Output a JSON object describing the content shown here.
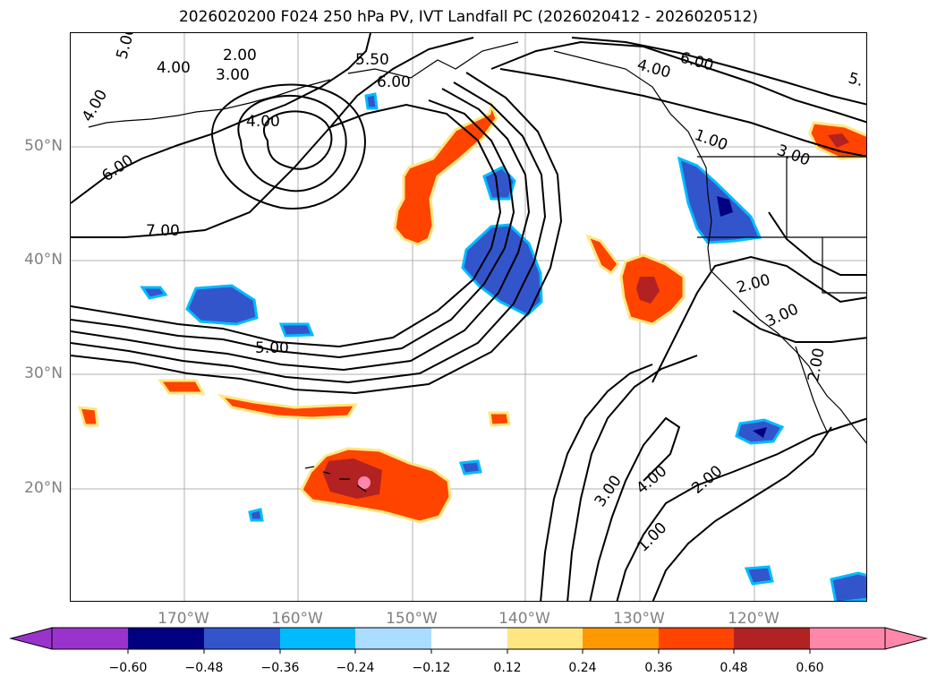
{
  "title": "2026020200 F024 250 hPa PV, IVT Landfall PC (2026020412 - 2026020512)",
  "latitude_labels": [
    "50°N",
    "40°N",
    "30°N",
    "20°N"
  ],
  "longitude_labels": [
    "170°W",
    "160°W",
    "150°W",
    "140°W",
    "130°W",
    "120°W"
  ],
  "contour_labels": [
    "5.00",
    "4.00",
    "2.00",
    "3.00",
    "5.50",
    "6.00",
    "4.00",
    "4.00",
    "6.00",
    "7.00",
    "5.00",
    "6.00",
    "4.00",
    "1.00",
    "3.00",
    "5.",
    "2.00",
    "3.00",
    "2.00",
    "3.00",
    "4.00",
    "2.00",
    "1.00"
  ],
  "colorbar": {
    "ticks": [
      "−0.60",
      "−0.48",
      "−0.36",
      "−0.24",
      "−0.12",
      "0.12",
      "0.24",
      "0.36",
      "0.48",
      "0.60"
    ],
    "colors": [
      "#9933cc",
      "#000080",
      "#3355cc",
      "#00bbff",
      "#aaddff",
      "#ffffff",
      "#ffe680",
      "#ff9900",
      "#ff4400",
      "#b22222",
      "#ff88aa",
      "#ff88aa"
    ]
  },
  "palette": {
    "positive_strong": "#b22222",
    "positive": "#ff4400",
    "positive_weak": "#ff9900",
    "positive_edge": "#ffe680",
    "positive_peak": "#ff88aa",
    "negative": "#3355cc",
    "negative_strong": "#000080",
    "negative_edge": "#00bbff"
  }
}
